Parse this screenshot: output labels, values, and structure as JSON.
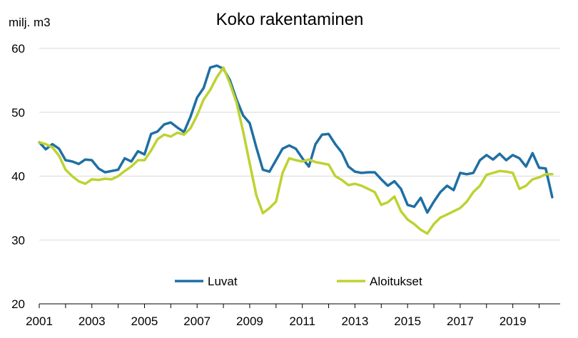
{
  "chart_data": {
    "type": "line",
    "title": "Koko rakentaminen",
    "ylabel": "milj. m3",
    "xlabel": "",
    "xlim": [
      2001.0,
      2020.8
    ],
    "ylim": [
      20,
      60
    ],
    "x_ticks": [
      "2001",
      "2003",
      "2005",
      "2007",
      "2009",
      "2011",
      "2013",
      "2015",
      "2017",
      "2019"
    ],
    "y_ticks": [
      "20",
      "30",
      "40",
      "50",
      "60"
    ],
    "grid": "horizontal",
    "legend_position": "bottom",
    "series": [
      {
        "name": "Luvat",
        "color": "#1f6fa3",
        "x": [
          2001.0,
          2001.25,
          2001.5,
          2001.75,
          2002.0,
          2002.25,
          2002.5,
          2002.75,
          2003.0,
          2003.25,
          2003.5,
          2003.75,
          2004.0,
          2004.25,
          2004.5,
          2004.75,
          2005.0,
          2005.25,
          2005.5,
          2005.75,
          2006.0,
          2006.25,
          2006.5,
          2006.75,
          2007.0,
          2007.25,
          2007.5,
          2007.75,
          2008.0,
          2008.25,
          2008.5,
          2008.75,
          2009.0,
          2009.25,
          2009.5,
          2009.75,
          2010.0,
          2010.25,
          2010.5,
          2010.75,
          2011.0,
          2011.25,
          2011.5,
          2011.75,
          2012.0,
          2012.25,
          2012.5,
          2012.75,
          2013.0,
          2013.25,
          2013.5,
          2013.75,
          2014.0,
          2014.25,
          2014.5,
          2014.75,
          2015.0,
          2015.25,
          2015.5,
          2015.75,
          2016.0,
          2016.25,
          2016.5,
          2016.75,
          2017.0,
          2017.25,
          2017.5,
          2017.75,
          2018.0,
          2018.25,
          2018.5,
          2018.75,
          2019.0,
          2019.25,
          2019.5,
          2019.75,
          2020.0,
          2020.25,
          2020.5
        ],
        "values": [
          45.3,
          44.2,
          45.0,
          44.3,
          42.5,
          42.3,
          41.9,
          42.6,
          42.5,
          41.2,
          40.6,
          40.8,
          41.0,
          42.8,
          42.3,
          43.9,
          43.4,
          46.6,
          47.0,
          48.1,
          48.4,
          47.6,
          46.9,
          49.3,
          52.3,
          53.8,
          57.0,
          57.3,
          56.8,
          55.0,
          52.0,
          49.5,
          48.3,
          44.5,
          41.0,
          40.7,
          42.5,
          44.3,
          44.8,
          44.3,
          42.8,
          41.5,
          45.0,
          46.5,
          46.6,
          45.0,
          43.7,
          41.5,
          40.7,
          40.5,
          40.6,
          40.6,
          39.5,
          38.5,
          39.2,
          38.0,
          35.5,
          35.2,
          36.6,
          34.3,
          36.0,
          37.5,
          38.5,
          37.8,
          40.5,
          40.3,
          40.5,
          42.5,
          43.3,
          42.6,
          43.5,
          42.5,
          43.3,
          42.8,
          41.5,
          43.6,
          41.3,
          41.2,
          36.7
        ]
      },
      {
        "name": "Aloitukset",
        "color": "#bed232",
        "x": [
          2001.0,
          2001.25,
          2001.5,
          2001.75,
          2002.0,
          2002.25,
          2002.5,
          2002.75,
          2003.0,
          2003.25,
          2003.5,
          2003.75,
          2004.0,
          2004.25,
          2004.5,
          2004.75,
          2005.0,
          2005.25,
          2005.5,
          2005.75,
          2006.0,
          2006.25,
          2006.5,
          2006.75,
          2007.0,
          2007.25,
          2007.5,
          2007.75,
          2008.0,
          2008.25,
          2008.5,
          2008.75,
          2009.0,
          2009.25,
          2009.5,
          2009.75,
          2010.0,
          2010.25,
          2010.5,
          2010.75,
          2011.0,
          2011.25,
          2011.5,
          2011.75,
          2012.0,
          2012.25,
          2012.5,
          2012.75,
          2013.0,
          2013.25,
          2013.5,
          2013.75,
          2014.0,
          2014.25,
          2014.5,
          2014.75,
          2015.0,
          2015.25,
          2015.5,
          2015.75,
          2016.0,
          2016.25,
          2016.5,
          2016.75,
          2017.0,
          2017.25,
          2017.5,
          2017.75,
          2018.0,
          2018.25,
          2018.5,
          2018.75,
          2019.0,
          2019.25,
          2019.5,
          2019.75,
          2020.0,
          2020.25,
          2020.5
        ],
        "values": [
          45.3,
          45.0,
          44.5,
          43.2,
          41.0,
          40.0,
          39.2,
          38.8,
          39.5,
          39.4,
          39.6,
          39.5,
          40.0,
          40.8,
          41.5,
          42.5,
          42.5,
          44.0,
          45.8,
          46.5,
          46.2,
          46.8,
          46.5,
          47.5,
          49.5,
          52.0,
          53.5,
          55.5,
          57.0,
          54.5,
          51.5,
          47.0,
          42.0,
          37.0,
          34.2,
          35.0,
          36.0,
          40.5,
          42.8,
          42.5,
          42.3,
          42.6,
          42.2,
          42.0,
          41.8,
          40.0,
          39.4,
          38.6,
          38.8,
          38.5,
          38.0,
          37.5,
          35.5,
          35.9,
          36.8,
          34.5,
          33.2,
          32.5,
          31.6,
          31.0,
          32.5,
          33.5,
          34.0,
          34.5,
          35.0,
          36.0,
          37.5,
          38.5,
          40.2,
          40.5,
          40.8,
          40.7,
          40.5,
          38.0,
          38.5,
          39.5,
          39.8,
          40.3,
          40.3
        ]
      }
    ]
  }
}
